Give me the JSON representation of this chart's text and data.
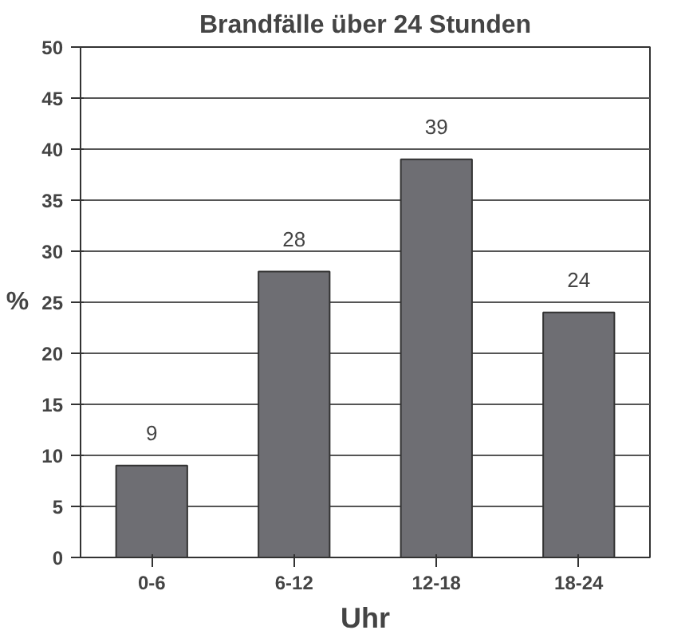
{
  "chart_data": {
    "type": "bar",
    "title": "Brandfälle über 24 Stunden",
    "xlabel": "Uhr",
    "ylabel": "%",
    "categories": [
      "0-6",
      "6-12",
      "12-18",
      "18-24"
    ],
    "values": [
      9,
      28,
      39,
      24
    ],
    "color": "#6e6e73",
    "ylim": [
      0,
      50
    ],
    "yticks": [
      0,
      5,
      10,
      15,
      20,
      25,
      30,
      35,
      40,
      45,
      50
    ],
    "grid": "y",
    "data_labels": true
  }
}
